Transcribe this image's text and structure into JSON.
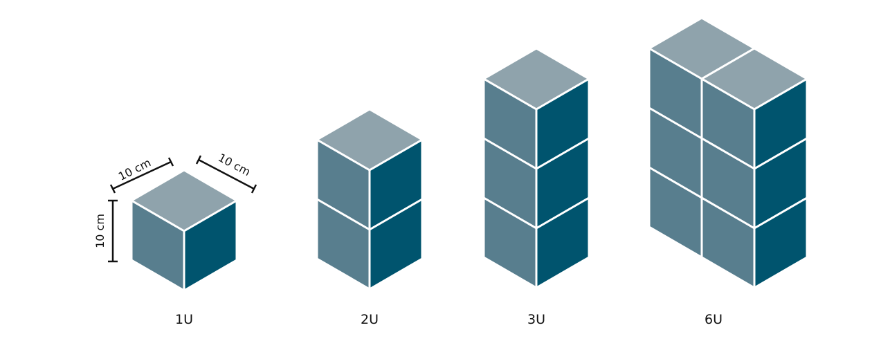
{
  "units": {
    "u1": "1U",
    "u2": "2U",
    "u3": "3U",
    "u6": "6U"
  },
  "dimensions": {
    "width": "10 cm",
    "depth": "10 cm",
    "height": "10 cm"
  },
  "colors": {
    "top_face": "#8fa3ac",
    "left_face": "#587e8e",
    "right_face": "#00546e",
    "edge": "#ffffff"
  }
}
